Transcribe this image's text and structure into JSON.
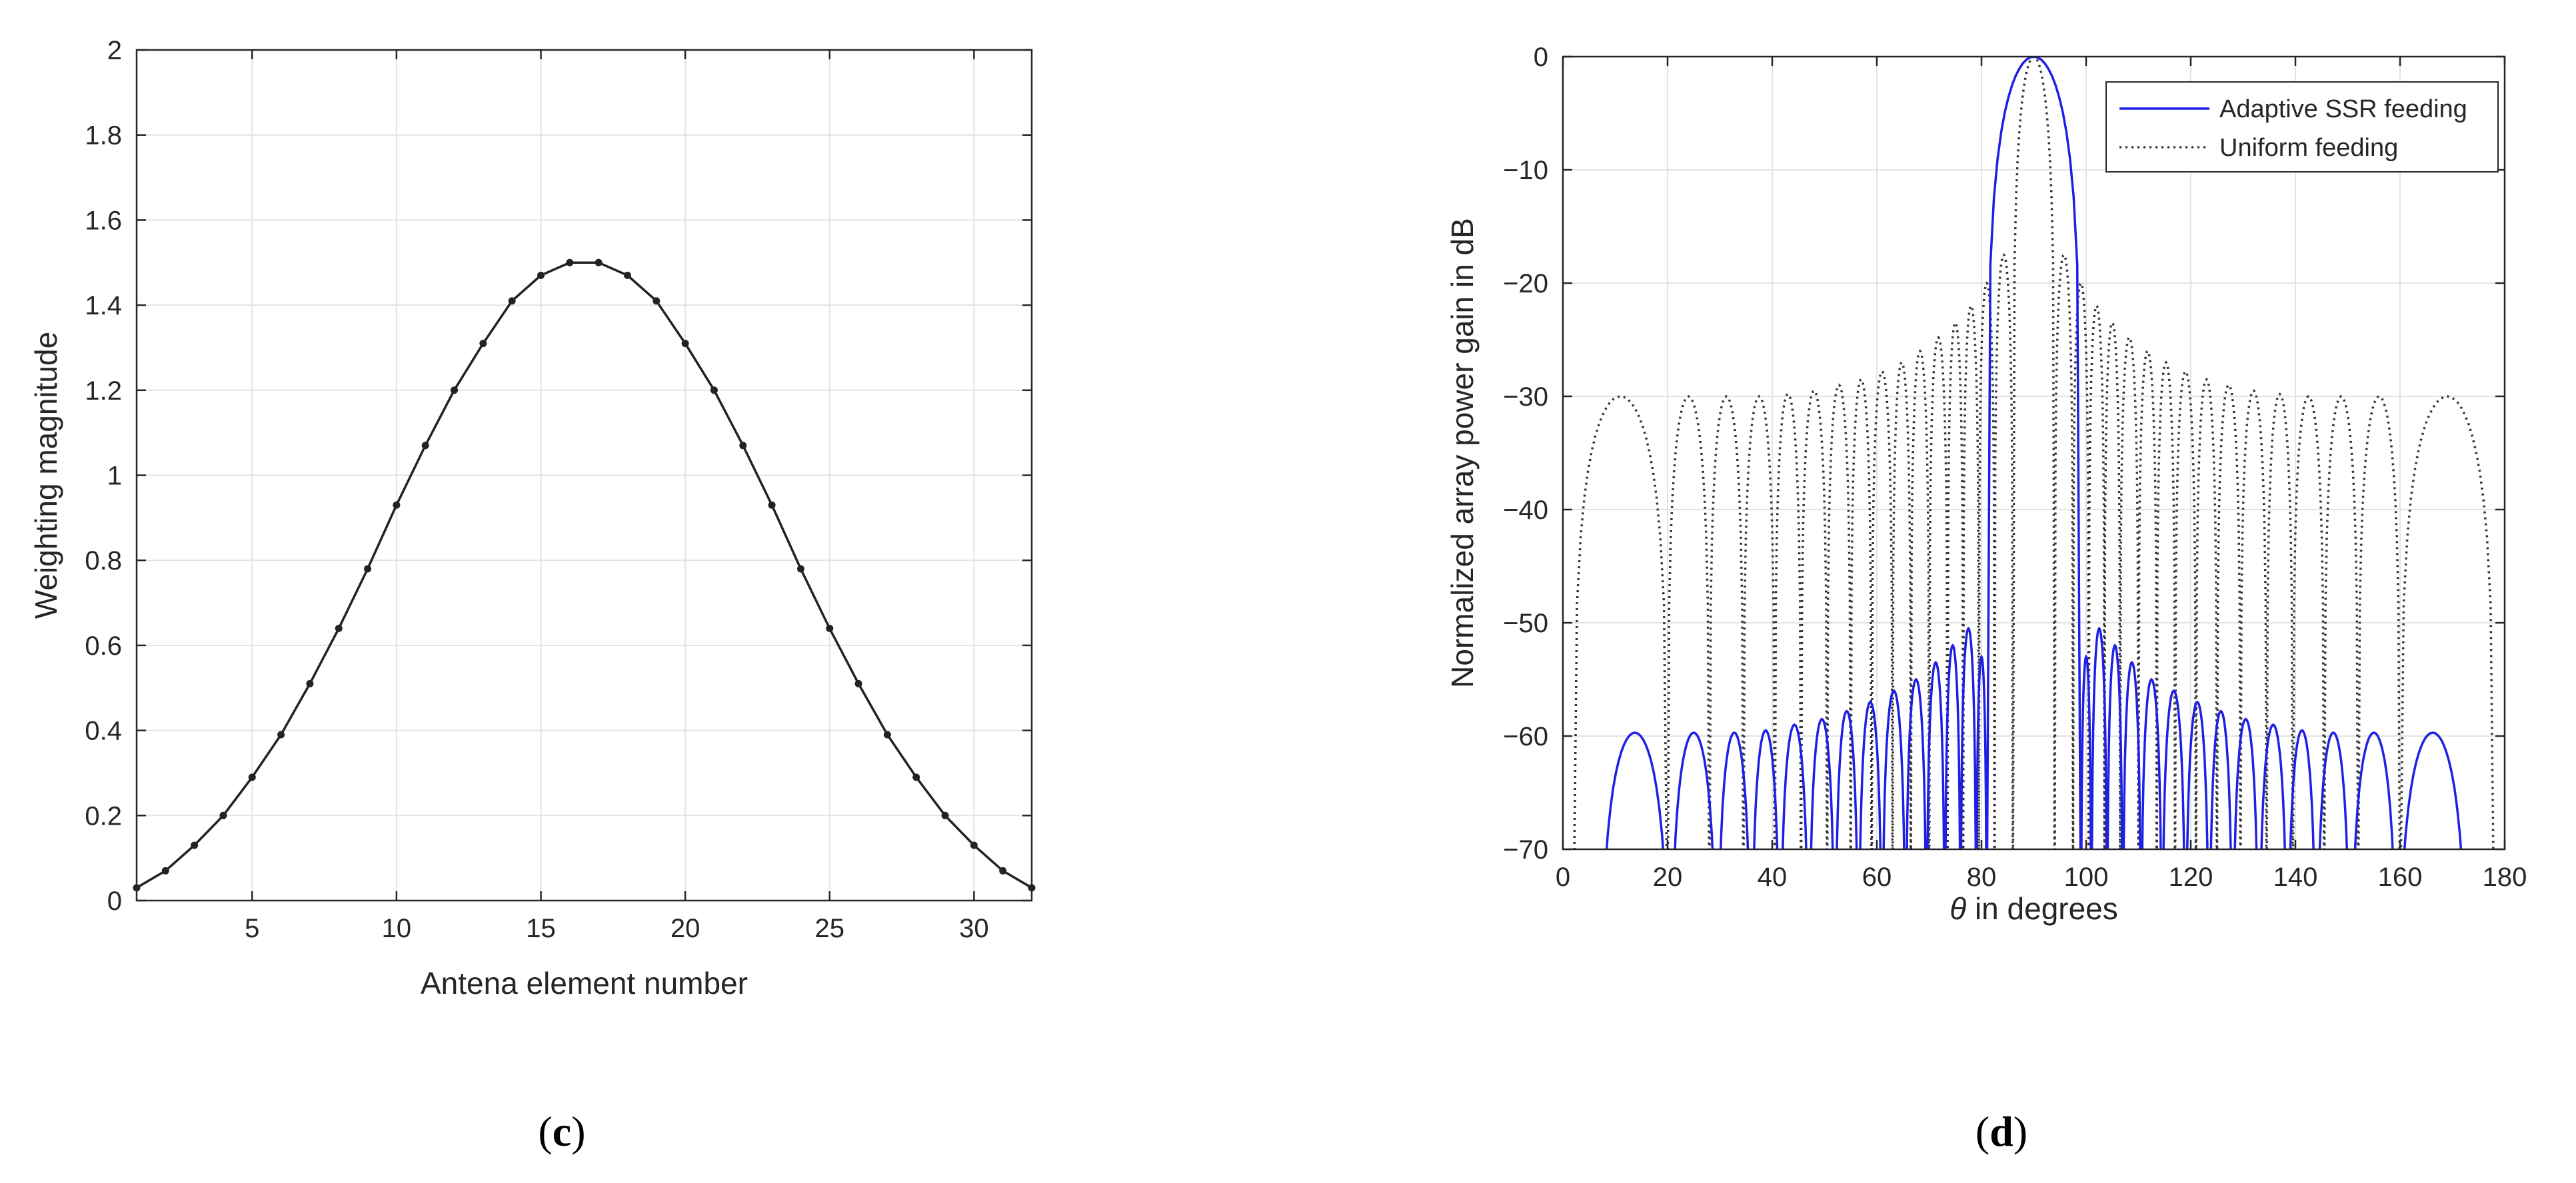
{
  "chart_data": [
    {
      "panel_label": "c",
      "type": "line",
      "xlabel": "Antena element number",
      "ylabel": "Weighting magnitude",
      "xlim": [
        1,
        32
      ],
      "ylim": [
        0,
        2
      ],
      "xticks": [
        5,
        10,
        15,
        20,
        25,
        30
      ],
      "yticks": [
        0,
        0.2,
        0.4,
        0.6,
        0.8,
        1,
        1.2,
        1.4,
        1.6,
        1.8,
        2
      ],
      "ytick_labels": [
        "0",
        "0.2",
        "0.4",
        "0.6",
        "0.8",
        "1",
        "1.2",
        "1.4",
        "1.6",
        "1.8",
        "2"
      ],
      "grid": true,
      "colors": {
        "line": "#222222"
      },
      "series": [
        {
          "x": [
            1,
            2,
            3,
            4,
            5,
            6,
            7,
            8,
            9,
            10,
            11,
            12,
            13,
            14,
            15,
            16,
            17,
            18,
            19,
            20,
            21,
            22,
            23,
            24,
            25,
            26,
            27,
            28,
            29,
            30,
            31,
            32
          ],
          "values": [
            0.03,
            0.07,
            0.13,
            0.2,
            0.29,
            0.39,
            0.51,
            0.64,
            0.78,
            0.93,
            1.07,
            1.2,
            1.31,
            1.41,
            1.47,
            1.5,
            1.5,
            1.47,
            1.41,
            1.31,
            1.2,
            1.07,
            0.93,
            0.78,
            0.64,
            0.51,
            0.39,
            0.29,
            0.2,
            0.13,
            0.07,
            0.03
          ]
        }
      ]
    },
    {
      "panel_label": "d",
      "type": "line",
      "xlabel_symbol": "θ",
      "xlabel_text": " in degrees",
      "ylabel": "Normalized array power gain in dB",
      "xlim": [
        0,
        180
      ],
      "ylim": [
        -70,
        0
      ],
      "xticks": [
        0,
        20,
        40,
        60,
        80,
        100,
        120,
        140,
        160,
        180
      ],
      "yticks": [
        0,
        -10,
        -20,
        -30,
        -40,
        -50,
        -60,
        -70
      ],
      "ytick_labels": [
        "0",
        "−10",
        "−20",
        "−30",
        "−40",
        "−50",
        "−60",
        "−70"
      ],
      "grid": true,
      "legend_position": "top-right",
      "colors": {
        "adaptive": "#1f1fe6",
        "uniform": "#333333"
      },
      "series": [
        {
          "name": "Adaptive SSR feeding",
          "style": "solid",
          "sidelobe_peaks": {
            "x": [
              14.5,
              25.5,
              32.5,
              38.5,
              44.5,
              49.5,
              54.5,
              59,
              63.5,
              67.5,
              71.5,
              74.5,
              77.5,
              80
            ],
            "values": [
              -59.7,
              -59.7,
              -59.7,
              -59.5,
              -59.0,
              -58.5,
              -57.8,
              -57.0,
              -56.0,
              -55.0,
              -53.5,
              -52.0,
              -50.5,
              -53.0
            ]
          },
          "sidelobe_nulls_x": [
            7,
            20.5,
            29.5,
            36,
            41.5,
            47,
            52,
            56.5,
            61,
            65.5,
            69.5,
            73,
            76,
            79,
            81,
            82.5,
            97.5
          ],
          "main_lobe": {
            "center_x": 90,
            "peak_db": 0,
            "half_width_deg": 8
          }
        },
        {
          "name": "Uniform feeding",
          "style": "dotted",
          "sidelobe_peaks": {
            "x": [
              14.5,
              24.5,
              31.5,
              37.5,
              43,
              48,
              52.5,
              57,
              61,
              65,
              68.5,
              72,
              75,
              78,
              81,
              84
            ],
            "values": [
              -30.0,
              -30.0,
              -30.0,
              -30.0,
              -29.8,
              -29.5,
              -29.0,
              -28.5,
              -27.8,
              -27.0,
              -26.0,
              -24.8,
              -23.5,
              -22.0,
              -20.0,
              -17.5
            ]
          },
          "sidelobe_nulls_x": [
            2,
            20,
            28,
            34.5,
            40.5,
            45.5,
            50.5,
            55,
            59,
            63,
            66.5,
            70,
            73.5,
            76.5,
            79.5,
            82.5,
            86
          ],
          "main_lobe": {
            "center_x": 90,
            "peak_db": 0,
            "half_width_deg": 4
          }
        }
      ]
    }
  ]
}
